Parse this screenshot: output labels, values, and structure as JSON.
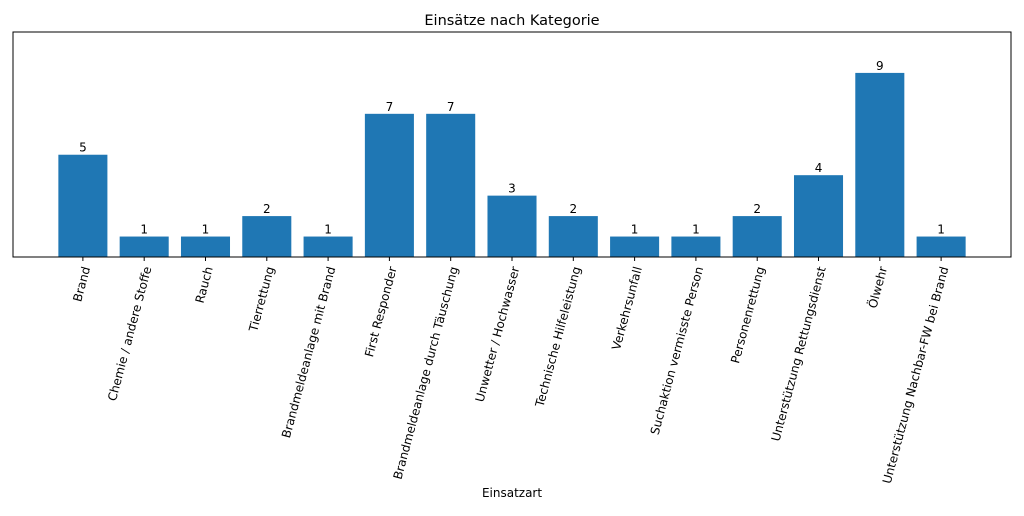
{
  "chart_data": {
    "type": "bar",
    "title": "Einsätze nach Kategorie",
    "xlabel": "Einsatzart",
    "ylabel": "",
    "categories": [
      "Brand",
      "Chemie / andere Stoffe",
      "Rauch",
      "Tierrettung",
      "Brandmeldeanlage mit Brand",
      "First Responder",
      "Brandmeldeanlage durch Täuschung",
      "Unwetter / Hochwasser",
      "Technische Hilfeleistung",
      "Verkehrsunfall",
      "Suchaktion vermisste Person",
      "Personenrettung",
      "Unterstützung Rettungsdienst",
      "Ölwehr",
      "Unterstützung Nachbar-FW bei Brand"
    ],
    "values": [
      5,
      1,
      1,
      2,
      1,
      7,
      7,
      3,
      2,
      1,
      1,
      2,
      4,
      9,
      1
    ],
    "ylim": [
      0,
      11
    ],
    "grid": false,
    "bar_color": "#1f77b4",
    "data_labels": true
  }
}
